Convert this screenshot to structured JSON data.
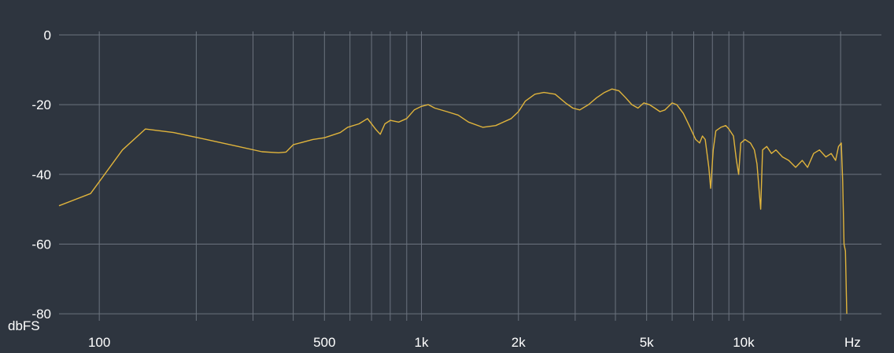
{
  "chart_data": {
    "type": "line",
    "title": "",
    "xlabel": "Hz",
    "ylabel": "dbFS",
    "x_scale": "log",
    "xlim": [
      75,
      23000
    ],
    "ylim": [
      -82,
      1
    ],
    "x_tick_labels": [
      {
        "value": 100,
        "label": "100"
      },
      {
        "value": 500,
        "label": "500"
      },
      {
        "value": 1000,
        "label": "1k"
      },
      {
        "value": 2000,
        "label": "2k"
      },
      {
        "value": 5000,
        "label": "5k"
      },
      {
        "value": 10000,
        "label": "10k"
      }
    ],
    "x_gridlines": [
      100,
      200,
      300,
      400,
      500,
      600,
      700,
      800,
      900,
      1000,
      2000,
      3000,
      4000,
      5000,
      6000,
      7000,
      8000,
      9000,
      10000,
      20000
    ],
    "y_ticks": [
      0,
      -20,
      -40,
      -60,
      -80
    ],
    "y_tick_labels": [
      "0",
      "-20",
      "-40",
      "-60",
      "-80"
    ],
    "grid": true,
    "colors": {
      "background": "#2e353f",
      "grid": "#6b737e",
      "line": "#e0b43c",
      "text": "#ffffff"
    },
    "series": [
      {
        "points": [
          [
            75,
            -49
          ],
          [
            94,
            -45.5
          ],
          [
            118,
            -33
          ],
          [
            139,
            -27
          ],
          [
            170,
            -28
          ],
          [
            215,
            -30
          ],
          [
            270,
            -32
          ],
          [
            320,
            -33.5
          ],
          [
            360,
            -33.8
          ],
          [
            380,
            -33.6
          ],
          [
            400,
            -31.5
          ],
          [
            460,
            -30
          ],
          [
            500,
            -29.5
          ],
          [
            560,
            -28
          ],
          [
            590,
            -26.5
          ],
          [
            640,
            -25.5
          ],
          [
            680,
            -24
          ],
          [
            720,
            -27
          ],
          [
            745,
            -28.5
          ],
          [
            770,
            -25.5
          ],
          [
            800,
            -24.5
          ],
          [
            850,
            -25
          ],
          [
            900,
            -24
          ],
          [
            950,
            -21.5
          ],
          [
            1000,
            -20.5
          ],
          [
            1050,
            -20
          ],
          [
            1100,
            -21
          ],
          [
            1200,
            -22
          ],
          [
            1300,
            -23
          ],
          [
            1400,
            -25
          ],
          [
            1550,
            -26.5
          ],
          [
            1700,
            -26
          ],
          [
            1900,
            -24
          ],
          [
            2000,
            -22
          ],
          [
            2100,
            -19
          ],
          [
            2250,
            -17
          ],
          [
            2400,
            -16.5
          ],
          [
            2600,
            -17
          ],
          [
            2800,
            -19.5
          ],
          [
            2950,
            -21
          ],
          [
            3100,
            -21.5
          ],
          [
            3300,
            -20
          ],
          [
            3500,
            -18
          ],
          [
            3700,
            -16.5
          ],
          [
            3900,
            -15.5
          ],
          [
            4100,
            -16
          ],
          [
            4300,
            -18
          ],
          [
            4500,
            -20
          ],
          [
            4700,
            -21
          ],
          [
            4900,
            -19.5
          ],
          [
            5100,
            -20
          ],
          [
            5300,
            -21
          ],
          [
            5500,
            -22
          ],
          [
            5700,
            -21.5
          ],
          [
            6000,
            -19.5
          ],
          [
            6200,
            -20
          ],
          [
            6500,
            -22.5
          ],
          [
            6700,
            -25
          ],
          [
            6900,
            -27.5
          ],
          [
            7100,
            -30
          ],
          [
            7300,
            -31
          ],
          [
            7450,
            -29
          ],
          [
            7600,
            -30
          ],
          [
            7800,
            -38
          ],
          [
            7900,
            -44
          ],
          [
            8050,
            -33
          ],
          [
            8200,
            -27.5
          ],
          [
            8500,
            -26.5
          ],
          [
            8800,
            -26
          ],
          [
            9000,
            -27
          ],
          [
            9300,
            -29
          ],
          [
            9500,
            -36
          ],
          [
            9650,
            -40
          ],
          [
            9800,
            -31
          ],
          [
            10100,
            -30
          ],
          [
            10500,
            -31
          ],
          [
            10800,
            -33
          ],
          [
            11000,
            -37
          ],
          [
            11200,
            -46
          ],
          [
            11300,
            -50
          ],
          [
            11450,
            -33
          ],
          [
            11800,
            -32
          ],
          [
            12200,
            -34
          ],
          [
            12600,
            -33
          ],
          [
            13200,
            -35
          ],
          [
            13800,
            -36
          ],
          [
            14500,
            -38
          ],
          [
            15200,
            -36
          ],
          [
            15800,
            -38
          ],
          [
            16500,
            -34
          ],
          [
            17200,
            -33
          ],
          [
            18000,
            -35
          ],
          [
            18700,
            -34
          ],
          [
            19300,
            -36
          ],
          [
            19700,
            -32
          ],
          [
            20100,
            -31
          ],
          [
            20300,
            -42
          ],
          [
            20500,
            -60
          ],
          [
            20700,
            -62
          ],
          [
            20900,
            -80
          ]
        ]
      }
    ]
  }
}
